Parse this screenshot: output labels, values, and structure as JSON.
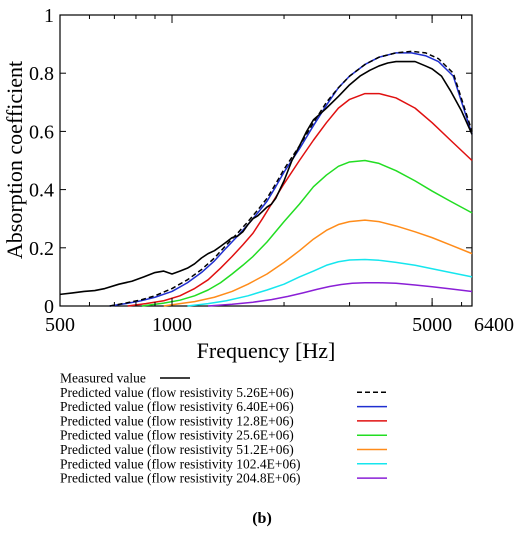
{
  "chart_data": {
    "type": "line",
    "xlabel": "Frequency [Hz]",
    "ylabel": "Absorption coefficient",
    "x_scale": "log",
    "xlim": [
      500,
      6400
    ],
    "ylim": [
      0,
      1
    ],
    "x_ticks": [
      500,
      1000,
      5000,
      6400
    ],
    "x_tick_labels": [
      "500",
      "1000",
      "5000",
      "6400"
    ],
    "y_ticks": [
      0,
      0.2,
      0.4,
      0.6,
      0.8,
      1
    ],
    "y_tick_labels": [
      "0",
      "0.2",
      "0.4",
      "0.6",
      "0.8",
      "1"
    ],
    "grid": false,
    "legend_placement": "below",
    "caption": "(b)",
    "series": [
      {
        "name": "Measured value",
        "color": "#000000",
        "dash": false,
        "points": [
          [
            500,
            0.04
          ],
          [
            540,
            0.045
          ],
          [
            580,
            0.05
          ],
          [
            620,
            0.053
          ],
          [
            660,
            0.06
          ],
          [
            720,
            0.075
          ],
          [
            780,
            0.085
          ],
          [
            840,
            0.1
          ],
          [
            900,
            0.115
          ],
          [
            950,
            0.12
          ],
          [
            1000,
            0.11
          ],
          [
            1050,
            0.12
          ],
          [
            1100,
            0.13
          ],
          [
            1150,
            0.145
          ],
          [
            1200,
            0.165
          ],
          [
            1250,
            0.18
          ],
          [
            1300,
            0.19
          ],
          [
            1350,
            0.205
          ],
          [
            1400,
            0.22
          ],
          [
            1450,
            0.235
          ],
          [
            1500,
            0.24
          ],
          [
            1550,
            0.255
          ],
          [
            1600,
            0.28
          ],
          [
            1650,
            0.3
          ],
          [
            1700,
            0.31
          ],
          [
            1750,
            0.325
          ],
          [
            1800,
            0.34
          ],
          [
            1850,
            0.35
          ],
          [
            1900,
            0.37
          ],
          [
            2000,
            0.43
          ],
          [
            2100,
            0.5
          ],
          [
            2200,
            0.55
          ],
          [
            2300,
            0.6
          ],
          [
            2400,
            0.64
          ],
          [
            2500,
            0.66
          ],
          [
            2600,
            0.68
          ],
          [
            2800,
            0.72
          ],
          [
            3000,
            0.76
          ],
          [
            3200,
            0.79
          ],
          [
            3400,
            0.81
          ],
          [
            3600,
            0.825
          ],
          [
            3800,
            0.835
          ],
          [
            4000,
            0.84
          ],
          [
            4200,
            0.84
          ],
          [
            4500,
            0.84
          ],
          [
            4800,
            0.825
          ],
          [
            5000,
            0.815
          ],
          [
            5300,
            0.79
          ],
          [
            5600,
            0.74
          ],
          [
            6000,
            0.67
          ],
          [
            6400,
            0.59
          ]
        ]
      },
      {
        "name": "Predicted value (flow resistivity 5.26E+06)",
        "color": "#000000",
        "dash": true,
        "points": [
          [
            680,
            0.0
          ],
          [
            750,
            0.01
          ],
          [
            820,
            0.02
          ],
          [
            900,
            0.035
          ],
          [
            1000,
            0.06
          ],
          [
            1100,
            0.09
          ],
          [
            1200,
            0.125
          ],
          [
            1300,
            0.165
          ],
          [
            1400,
            0.21
          ],
          [
            1500,
            0.25
          ],
          [
            1600,
            0.29
          ],
          [
            1700,
            0.33
          ],
          [
            1800,
            0.37
          ],
          [
            1900,
            0.42
          ],
          [
            2000,
            0.47
          ],
          [
            2200,
            0.55
          ],
          [
            2400,
            0.63
          ],
          [
            2600,
            0.7
          ],
          [
            2800,
            0.75
          ],
          [
            3000,
            0.79
          ],
          [
            3300,
            0.83
          ],
          [
            3600,
            0.855
          ],
          [
            4000,
            0.87
          ],
          [
            4400,
            0.875
          ],
          [
            4800,
            0.87
          ],
          [
            5200,
            0.85
          ],
          [
            5700,
            0.8
          ],
          [
            6400,
            0.6
          ]
        ]
      },
      {
        "name": "Predicted value (flow resistivity 6.40E+06)",
        "color": "#1f2fd0",
        "dash": false,
        "points": [
          [
            680,
            0.0
          ],
          [
            750,
            0.008
          ],
          [
            820,
            0.017
          ],
          [
            900,
            0.03
          ],
          [
            1000,
            0.05
          ],
          [
            1100,
            0.08
          ],
          [
            1200,
            0.115
          ],
          [
            1300,
            0.155
          ],
          [
            1400,
            0.2
          ],
          [
            1500,
            0.24
          ],
          [
            1600,
            0.28
          ],
          [
            1700,
            0.32
          ],
          [
            1800,
            0.36
          ],
          [
            1900,
            0.41
          ],
          [
            2000,
            0.46
          ],
          [
            2200,
            0.54
          ],
          [
            2400,
            0.62
          ],
          [
            2600,
            0.69
          ],
          [
            2800,
            0.75
          ],
          [
            3000,
            0.79
          ],
          [
            3300,
            0.83
          ],
          [
            3600,
            0.855
          ],
          [
            4000,
            0.87
          ],
          [
            4400,
            0.87
          ],
          [
            4800,
            0.86
          ],
          [
            5200,
            0.84
          ],
          [
            5700,
            0.79
          ],
          [
            6400,
            0.59
          ]
        ]
      },
      {
        "name": "Predicted value (flow resistivity 12.8E+06)",
        "color": "#e01010",
        "dash": false,
        "points": [
          [
            760,
            0.0
          ],
          [
            850,
            0.008
          ],
          [
            950,
            0.018
          ],
          [
            1050,
            0.035
          ],
          [
            1150,
            0.06
          ],
          [
            1250,
            0.09
          ],
          [
            1350,
            0.13
          ],
          [
            1450,
            0.17
          ],
          [
            1550,
            0.21
          ],
          [
            1650,
            0.25
          ],
          [
            1750,
            0.3
          ],
          [
            1850,
            0.35
          ],
          [
            2000,
            0.42
          ],
          [
            2200,
            0.5
          ],
          [
            2400,
            0.57
          ],
          [
            2600,
            0.63
          ],
          [
            2800,
            0.68
          ],
          [
            3000,
            0.71
          ],
          [
            3300,
            0.73
          ],
          [
            3600,
            0.73
          ],
          [
            4000,
            0.715
          ],
          [
            4500,
            0.68
          ],
          [
            5000,
            0.63
          ],
          [
            5600,
            0.57
          ],
          [
            6400,
            0.5
          ]
        ]
      },
      {
        "name": "Predicted value (flow resistivity 25.6E+06)",
        "color": "#22dd22",
        "dash": false,
        "points": [
          [
            830,
            0.0
          ],
          [
            950,
            0.01
          ],
          [
            1050,
            0.02
          ],
          [
            1150,
            0.035
          ],
          [
            1250,
            0.055
          ],
          [
            1350,
            0.08
          ],
          [
            1450,
            0.11
          ],
          [
            1550,
            0.14
          ],
          [
            1650,
            0.17
          ],
          [
            1800,
            0.22
          ],
          [
            2000,
            0.29
          ],
          [
            2200,
            0.35
          ],
          [
            2400,
            0.41
          ],
          [
            2600,
            0.45
          ],
          [
            2800,
            0.48
          ],
          [
            3000,
            0.495
          ],
          [
            3300,
            0.5
          ],
          [
            3600,
            0.49
          ],
          [
            4000,
            0.465
          ],
          [
            4500,
            0.43
          ],
          [
            5000,
            0.395
          ],
          [
            5600,
            0.36
          ],
          [
            6400,
            0.32
          ]
        ]
      },
      {
        "name": "Predicted value (flow resistivity 51.2E+06)",
        "color": "#ff8c1a",
        "dash": false,
        "points": [
          [
            950,
            0.0
          ],
          [
            1050,
            0.008
          ],
          [
            1150,
            0.015
          ],
          [
            1300,
            0.03
          ],
          [
            1450,
            0.05
          ],
          [
            1600,
            0.075
          ],
          [
            1800,
            0.11
          ],
          [
            2000,
            0.15
          ],
          [
            2200,
            0.19
          ],
          [
            2400,
            0.23
          ],
          [
            2600,
            0.26
          ],
          [
            2800,
            0.28
          ],
          [
            3000,
            0.29
          ],
          [
            3300,
            0.295
          ],
          [
            3600,
            0.29
          ],
          [
            4000,
            0.275
          ],
          [
            4500,
            0.255
          ],
          [
            5000,
            0.235
          ],
          [
            5600,
            0.21
          ],
          [
            6400,
            0.18
          ]
        ]
      },
      {
        "name": "Predicted value (flow resistivity 102.4E+06)",
        "color": "#16e6ee",
        "dash": false,
        "points": [
          [
            1100,
            0.0
          ],
          [
            1250,
            0.008
          ],
          [
            1400,
            0.018
          ],
          [
            1600,
            0.035
          ],
          [
            1800,
            0.055
          ],
          [
            2000,
            0.075
          ],
          [
            2200,
            0.1
          ],
          [
            2400,
            0.12
          ],
          [
            2600,
            0.14
          ],
          [
            2800,
            0.152
          ],
          [
            3000,
            0.158
          ],
          [
            3300,
            0.16
          ],
          [
            3600,
            0.157
          ],
          [
            4000,
            0.15
          ],
          [
            4500,
            0.14
          ],
          [
            5000,
            0.128
          ],
          [
            5600,
            0.115
          ],
          [
            6400,
            0.1
          ]
        ]
      },
      {
        "name": "Predicted value (flow resistivity 204.8E+06)",
        "color": "#8a1fd6",
        "dash": false,
        "points": [
          [
            1250,
            0.0
          ],
          [
            1450,
            0.006
          ],
          [
            1650,
            0.013
          ],
          [
            1850,
            0.022
          ],
          [
            2050,
            0.033
          ],
          [
            2250,
            0.045
          ],
          [
            2450,
            0.057
          ],
          [
            2650,
            0.067
          ],
          [
            2850,
            0.074
          ],
          [
            3050,
            0.078
          ],
          [
            3300,
            0.08
          ],
          [
            3600,
            0.08
          ],
          [
            4000,
            0.078
          ],
          [
            4500,
            0.072
          ],
          [
            5000,
            0.066
          ],
          [
            5600,
            0.059
          ],
          [
            6400,
            0.05
          ]
        ]
      }
    ]
  }
}
